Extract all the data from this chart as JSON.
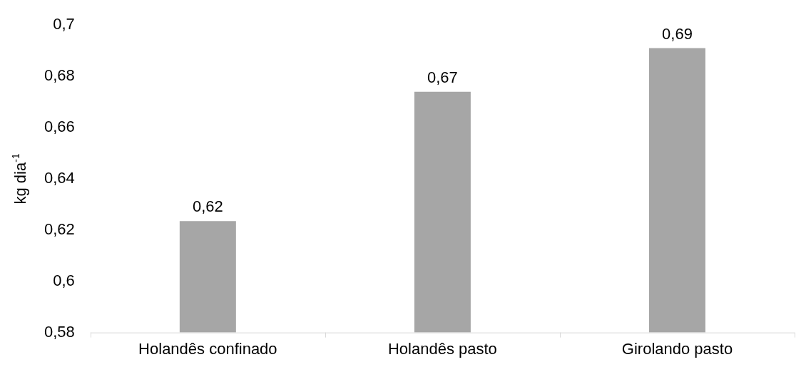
{
  "chart_data": {
    "type": "bar",
    "ylabel": "kg dia$^{-1}$",
    "categories": [
      "Holandês confinado",
      "Holandês pasto",
      "Girolando pasto"
    ],
    "values": [
      0.6235,
      0.674,
      0.691
    ],
    "value_labels": [
      "0,62",
      "0,67",
      "0,69"
    ],
    "color": "#a6a6a6",
    "ylim": [
      0.58,
      0.7
    ],
    "yticks": [
      {
        "value": 0.58,
        "label": "0,58"
      },
      {
        "value": 0.6,
        "label": "0,6"
      },
      {
        "value": 0.62,
        "label": "0,62"
      },
      {
        "value": 0.64,
        "label": "0,64"
      },
      {
        "value": 0.66,
        "label": "0,66"
      },
      {
        "value": 0.68,
        "label": "0,68"
      },
      {
        "value": 0.7,
        "label": "0,7"
      }
    ],
    "grid": false,
    "legend": false
  }
}
